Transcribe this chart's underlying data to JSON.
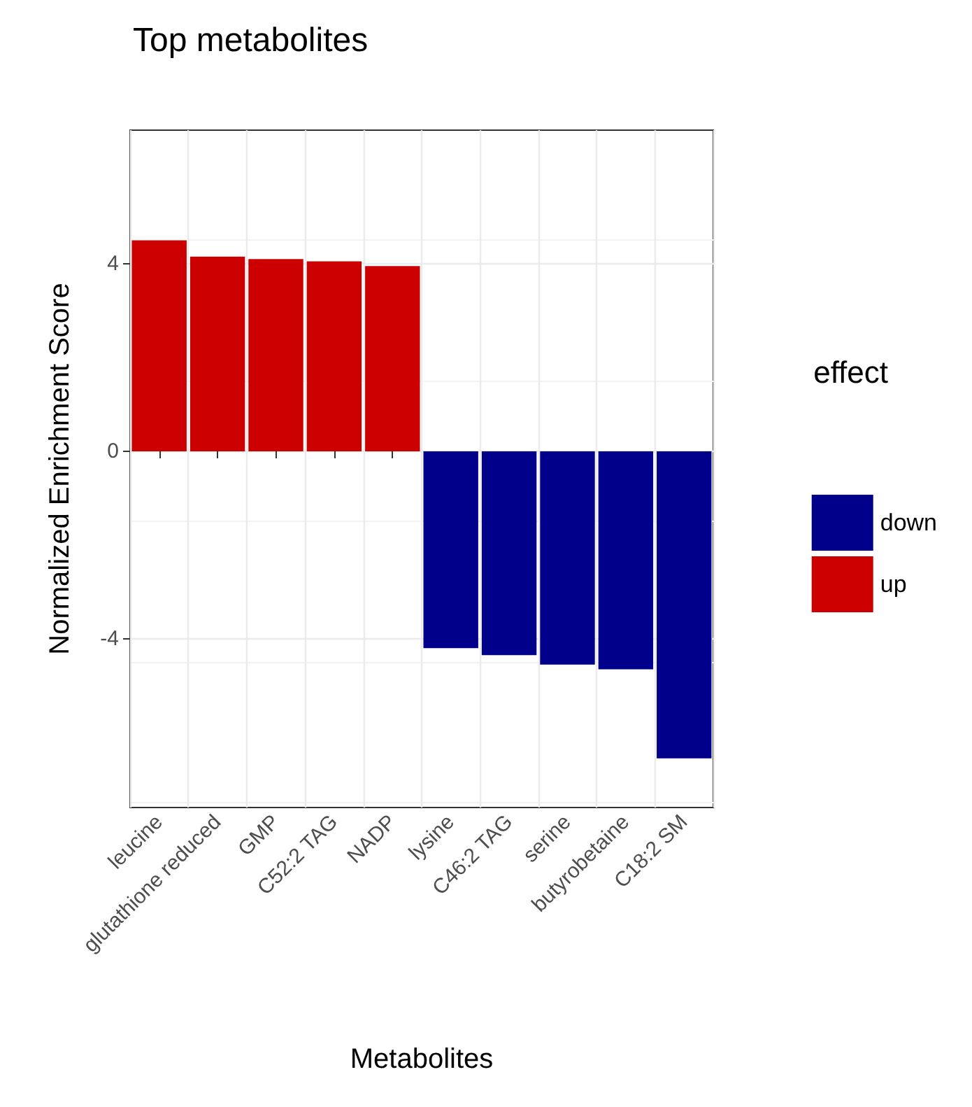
{
  "chart_data": {
    "type": "bar",
    "title": "Top metabolites",
    "xlabel": "Metabolites",
    "ylabel": "Normalized Enrichment Score",
    "legend_title": "effect",
    "categories": [
      "leucine",
      "glutathione reduced",
      "GMP",
      "C52:2 TAG",
      "NADP",
      "lysine",
      "C46:2 TAG",
      "serine",
      "butyrobetaine",
      "C18:2 SM"
    ],
    "series": [
      {
        "name": "down",
        "color": "#00008b",
        "values": [
          null,
          null,
          null,
          null,
          null,
          -4.2,
          -4.35,
          -4.55,
          -4.65,
          -6.55
        ]
      },
      {
        "name": "up",
        "color": "#cc0000",
        "values": [
          4.5,
          4.15,
          4.1,
          4.05,
          3.95,
          null,
          null,
          null,
          null,
          null
        ]
      }
    ],
    "ylim": [
      -7.6,
      6.85
    ],
    "yticks": [
      -4,
      0,
      4
    ],
    "grid": true,
    "legend": "right"
  }
}
